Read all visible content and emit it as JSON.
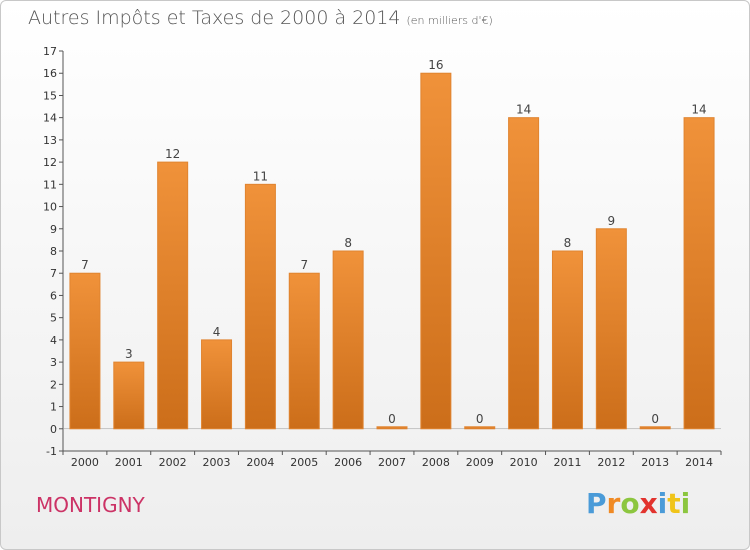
{
  "chart_data": {
    "type": "bar",
    "title": "Autres Impôts et Taxes de 2000 à 2014",
    "subtitle": "(en milliers d'€)",
    "categories": [
      "2000",
      "2001",
      "2002",
      "2003",
      "2004",
      "2005",
      "2006",
      "2007",
      "2008",
      "2009",
      "2010",
      "2011",
      "2012",
      "2013",
      "2014"
    ],
    "values": [
      7,
      3,
      12,
      4,
      11,
      7,
      8,
      0,
      16,
      0,
      14,
      8,
      9,
      0,
      14
    ],
    "value_labels": [
      "7",
      "3",
      "12",
      "4",
      "11",
      "7",
      "8",
      "0",
      "16",
      "0",
      "14",
      "8",
      "9",
      "0",
      "14"
    ],
    "ylim": [
      -1,
      17
    ],
    "yticks": [
      "-1",
      "0",
      "1",
      "2",
      "3",
      "4",
      "5",
      "6",
      "7",
      "8",
      "9",
      "10",
      "11",
      "12",
      "13",
      "14",
      "15",
      "16",
      "17"
    ],
    "xlabel": "",
    "ylabel": "",
    "grid": false,
    "bar_color": "#f0923a",
    "bar_color_dark": "#cc6e1a"
  },
  "footer": {
    "location": "MONTIGNY",
    "logo": {
      "letters": [
        {
          "char": "P",
          "color": "#4a9bd8"
        },
        {
          "char": "r",
          "color": "#f08a24"
        },
        {
          "char": "o",
          "color": "#8cc63f"
        },
        {
          "char": "x",
          "color": "#e2332e"
        },
        {
          "char": "i",
          "color": "#4a9bd8"
        },
        {
          "char": "t",
          "color": "#f0c419"
        },
        {
          "char": "i",
          "color": "#8cc63f"
        }
      ]
    }
  }
}
